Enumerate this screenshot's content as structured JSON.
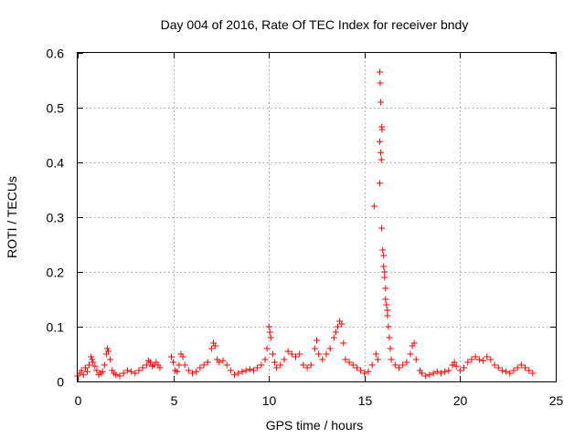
{
  "chart_data": {
    "type": "scatter",
    "title": "Day 004 of 2016, Rate Of TEC Index for receiver bndy",
    "xlabel": "GPS time / hours",
    "ylabel": "ROTI / TECUs",
    "xlim": [
      0,
      25
    ],
    "ylim": [
      0,
      0.6
    ],
    "x_ticks": [
      0,
      5,
      10,
      15,
      20,
      25
    ],
    "x_tick_labels": [
      "0",
      "5",
      "10",
      "15",
      "20",
      "25"
    ],
    "y_ticks": [
      0,
      0.1,
      0.2,
      0.3,
      0.4,
      0.5,
      0.6
    ],
    "y_tick_labels": [
      "0",
      "0.1",
      "0.2",
      "0.3",
      "0.4",
      "0.5",
      "0.6"
    ],
    "grid": true,
    "marker": "+",
    "color": "#ff0000",
    "series": [
      {
        "name": "ROTI",
        "points": [
          [
            0.0,
            0.01
          ],
          [
            0.1,
            0.015
          ],
          [
            0.2,
            0.02
          ],
          [
            0.3,
            0.012
          ],
          [
            0.4,
            0.025
          ],
          [
            0.5,
            0.018
          ],
          [
            0.6,
            0.03
          ],
          [
            0.7,
            0.045
          ],
          [
            0.75,
            0.04
          ],
          [
            0.8,
            0.035
          ],
          [
            0.9,
            0.028
          ],
          [
            1.0,
            0.02
          ],
          [
            1.1,
            0.012
          ],
          [
            1.2,
            0.015
          ],
          [
            1.3,
            0.018
          ],
          [
            1.4,
            0.03
          ],
          [
            1.5,
            0.05
          ],
          [
            1.55,
            0.06
          ],
          [
            1.6,
            0.055
          ],
          [
            1.7,
            0.04
          ],
          [
            1.8,
            0.02
          ],
          [
            1.9,
            0.015
          ],
          [
            2.0,
            0.012
          ],
          [
            2.2,
            0.01
          ],
          [
            2.4,
            0.015
          ],
          [
            2.6,
            0.02
          ],
          [
            2.8,
            0.018
          ],
          [
            3.0,
            0.015
          ],
          [
            3.2,
            0.02
          ],
          [
            3.4,
            0.025
          ],
          [
            3.6,
            0.03
          ],
          [
            3.7,
            0.038
          ],
          [
            3.8,
            0.035
          ],
          [
            3.9,
            0.028
          ],
          [
            4.0,
            0.03
          ],
          [
            4.1,
            0.035
          ],
          [
            4.2,
            0.03
          ],
          [
            4.3,
            0.025
          ],
          [
            4.9,
            0.045
          ],
          [
            5.0,
            0.035
          ],
          [
            5.1,
            0.02
          ],
          [
            5.2,
            0.018
          ],
          [
            5.3,
            0.03
          ],
          [
            5.4,
            0.05
          ],
          [
            5.5,
            0.045
          ],
          [
            5.6,
            0.03
          ],
          [
            5.8,
            0.02
          ],
          [
            6.0,
            0.015
          ],
          [
            6.2,
            0.018
          ],
          [
            6.4,
            0.025
          ],
          [
            6.6,
            0.03
          ],
          [
            6.8,
            0.035
          ],
          [
            7.0,
            0.06
          ],
          [
            7.1,
            0.07
          ],
          [
            7.2,
            0.065
          ],
          [
            7.3,
            0.04
          ],
          [
            7.4,
            0.035
          ],
          [
            7.6,
            0.038
          ],
          [
            7.8,
            0.03
          ],
          [
            8.0,
            0.02
          ],
          [
            8.2,
            0.012
          ],
          [
            8.4,
            0.015
          ],
          [
            8.6,
            0.018
          ],
          [
            8.8,
            0.02
          ],
          [
            9.0,
            0.022
          ],
          [
            9.2,
            0.02
          ],
          [
            9.4,
            0.025
          ],
          [
            9.6,
            0.03
          ],
          [
            9.8,
            0.04
          ],
          [
            9.9,
            0.06
          ],
          [
            10.0,
            0.1
          ],
          [
            10.05,
            0.09
          ],
          [
            10.1,
            0.08
          ],
          [
            10.2,
            0.05
          ],
          [
            10.3,
            0.035
          ],
          [
            10.4,
            0.025
          ],
          [
            10.6,
            0.03
          ],
          [
            10.8,
            0.04
          ],
          [
            11.0,
            0.055
          ],
          [
            11.2,
            0.05
          ],
          [
            11.4,
            0.045
          ],
          [
            11.6,
            0.05
          ],
          [
            11.8,
            0.03
          ],
          [
            12.0,
            0.025
          ],
          [
            12.2,
            0.03
          ],
          [
            12.4,
            0.06
          ],
          [
            12.5,
            0.075
          ],
          [
            12.6,
            0.05
          ],
          [
            12.8,
            0.04
          ],
          [
            13.0,
            0.05
          ],
          [
            13.2,
            0.06
          ],
          [
            13.4,
            0.08
          ],
          [
            13.5,
            0.09
          ],
          [
            13.6,
            0.1
          ],
          [
            13.7,
            0.11
          ],
          [
            13.8,
            0.105
          ],
          [
            13.9,
            0.07
          ],
          [
            14.0,
            0.04
          ],
          [
            14.2,
            0.035
          ],
          [
            14.4,
            0.03
          ],
          [
            14.6,
            0.025
          ],
          [
            14.8,
            0.02
          ],
          [
            15.0,
            0.015
          ],
          [
            15.2,
            0.018
          ],
          [
            15.4,
            0.03
          ],
          [
            15.5,
            0.32
          ],
          [
            15.6,
            0.05
          ],
          [
            15.7,
            0.04
          ],
          [
            15.8,
            0.565
          ],
          [
            15.82,
            0.545
          ],
          [
            15.85,
            0.51
          ],
          [
            15.9,
            0.465
          ],
          [
            15.92,
            0.46
          ],
          [
            15.8,
            0.438
          ],
          [
            15.85,
            0.418
          ],
          [
            15.88,
            0.405
          ],
          [
            15.8,
            0.362
          ],
          [
            15.9,
            0.28
          ],
          [
            15.95,
            0.24
          ],
          [
            16.0,
            0.23
          ],
          [
            16.0,
            0.21
          ],
          [
            16.05,
            0.2
          ],
          [
            16.05,
            0.19
          ],
          [
            16.1,
            0.17
          ],
          [
            16.1,
            0.15
          ],
          [
            16.15,
            0.14
          ],
          [
            16.2,
            0.13
          ],
          [
            16.2,
            0.12
          ],
          [
            16.25,
            0.1
          ],
          [
            16.3,
            0.08
          ],
          [
            16.35,
            0.06
          ],
          [
            16.4,
            0.04
          ],
          [
            16.6,
            0.03
          ],
          [
            16.8,
            0.025
          ],
          [
            17.0,
            0.03
          ],
          [
            17.2,
            0.035
          ],
          [
            17.4,
            0.05
          ],
          [
            17.5,
            0.065
          ],
          [
            17.6,
            0.07
          ],
          [
            17.7,
            0.04
          ],
          [
            17.9,
            0.02
          ],
          [
            18.0,
            0.015
          ],
          [
            18.2,
            0.01
          ],
          [
            18.4,
            0.012
          ],
          [
            18.6,
            0.015
          ],
          [
            18.8,
            0.018
          ],
          [
            19.0,
            0.015
          ],
          [
            19.2,
            0.018
          ],
          [
            19.4,
            0.02
          ],
          [
            19.6,
            0.03
          ],
          [
            19.7,
            0.035
          ],
          [
            19.8,
            0.028
          ],
          [
            20.0,
            0.02
          ],
          [
            20.2,
            0.025
          ],
          [
            20.4,
            0.035
          ],
          [
            20.6,
            0.04
          ],
          [
            20.8,
            0.045
          ],
          [
            21.0,
            0.04
          ],
          [
            21.2,
            0.038
          ],
          [
            21.4,
            0.045
          ],
          [
            21.6,
            0.04
          ],
          [
            21.8,
            0.03
          ],
          [
            22.0,
            0.025
          ],
          [
            22.2,
            0.02
          ],
          [
            22.4,
            0.018
          ],
          [
            22.6,
            0.015
          ],
          [
            22.8,
            0.02
          ],
          [
            23.0,
            0.025
          ],
          [
            23.2,
            0.03
          ],
          [
            23.4,
            0.025
          ],
          [
            23.6,
            0.02
          ],
          [
            23.8,
            0.015
          ]
        ]
      }
    ]
  }
}
